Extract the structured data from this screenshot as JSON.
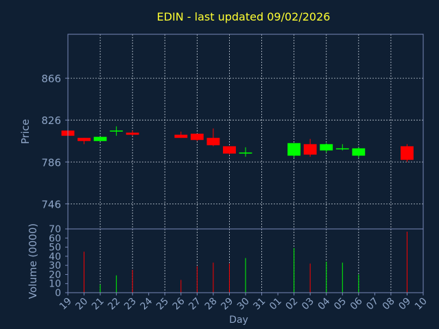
{
  "chart_data": {
    "type": "candlestick",
    "title": "EDIN - last updated 09/02/2026",
    "colors": {
      "background": "#0f1f33",
      "frame": "#7a8ab8",
      "grid": "#e6eef8",
      "title": "#ffff33",
      "axis_text": "#8fa6c8",
      "up": "#00ff00",
      "down": "#ff0000"
    },
    "price_panel": {
      "ylabel": "Price",
      "yticks": [
        746,
        786,
        826,
        866
      ],
      "ylim": [
        722,
        908
      ]
    },
    "volume_panel": {
      "ylabel": "Volume (0000)",
      "yticks": [
        0,
        10,
        20,
        30,
        40,
        50,
        60,
        70
      ],
      "ylim": [
        0,
        70
      ]
    },
    "x": {
      "xlabel": "Day",
      "categories": [
        "19",
        "20",
        "21",
        "22",
        "23",
        "24",
        "25",
        "26",
        "27",
        "28",
        "29",
        "30",
        "31",
        "01",
        "02",
        "03",
        "04",
        "05",
        "06",
        "07",
        "08",
        "09",
        "10"
      ],
      "gridlines_at": [
        "21",
        "23",
        "25",
        "27",
        "29",
        "31",
        "02",
        "04",
        "06",
        "08"
      ]
    },
    "candles": [
      {
        "day": "19",
        "open": 816,
        "high": 817,
        "low": 811,
        "close": 811,
        "volume": 0
      },
      {
        "day": "20",
        "open": 809,
        "high": 809,
        "low": 803,
        "close": 806,
        "volume": 45
      },
      {
        "day": "21",
        "open": 806,
        "high": 810,
        "low": 806,
        "close": 810,
        "volume": 9
      },
      {
        "day": "22",
        "open": 816,
        "high": 820,
        "low": 811,
        "close": 816,
        "volume": 19
      },
      {
        "day": "23",
        "open": 814,
        "high": 816,
        "low": 811,
        "close": 812,
        "volume": 25
      },
      {
        "day": "26",
        "open": 812,
        "high": 815,
        "low": 809,
        "close": 809,
        "volume": 14
      },
      {
        "day": "27",
        "open": 813,
        "high": 813,
        "low": 806,
        "close": 807,
        "volume": 29
      },
      {
        "day": "28",
        "open": 809,
        "high": 818,
        "low": 801,
        "close": 802,
        "volume": 33
      },
      {
        "day": "29",
        "open": 801,
        "high": 801,
        "low": 793,
        "close": 794,
        "volume": 32
      },
      {
        "day": "30",
        "open": 794,
        "high": 800,
        "low": 791,
        "close": 795,
        "volume": 38
      },
      {
        "day": "02",
        "open": 792,
        "high": 804,
        "low": 790,
        "close": 804,
        "volume": 49
      },
      {
        "day": "03",
        "open": 803,
        "high": 808,
        "low": 791,
        "close": 793,
        "volume": 32
      },
      {
        "day": "04",
        "open": 797,
        "high": 804,
        "low": 795,
        "close": 803,
        "volume": 34
      },
      {
        "day": "05",
        "open": 798,
        "high": 803,
        "low": 797,
        "close": 799,
        "volume": 33
      },
      {
        "day": "06",
        "open": 792,
        "high": 800,
        "low": 790,
        "close": 799,
        "volume": 20
      },
      {
        "day": "09",
        "open": 801,
        "high": 803,
        "low": 786,
        "close": 788,
        "volume": 67
      }
    ]
  }
}
